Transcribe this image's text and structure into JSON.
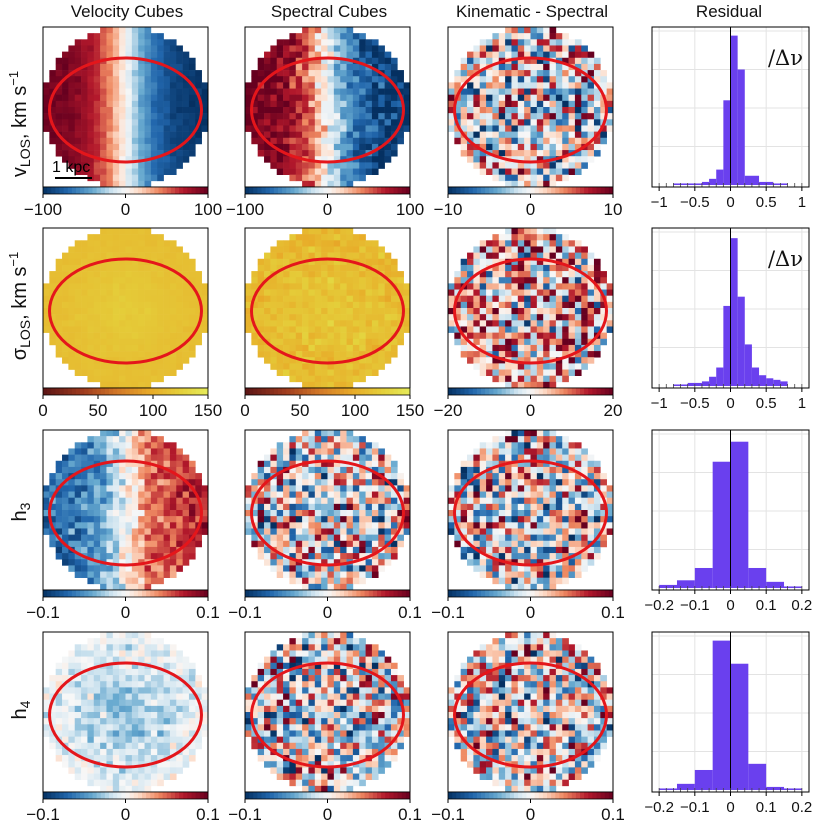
{
  "figure": {
    "column_titles": [
      "Velocity Cubes",
      "Spectral Cubes",
      "Kinematic - Spectral",
      "Residual"
    ],
    "scale_bar_label": "1 kpc",
    "hist_annotation": "/Δν"
  },
  "chart_data": [
    {
      "type": "heatmap",
      "row": 0,
      "col": 0,
      "ylabel": "v_LOS, km s^-1",
      "pattern": "rotation",
      "amplitude": 100,
      "colormap": "RdBu_r",
      "clim": [
        -100,
        100
      ],
      "colorbar_ticks": [
        "−100",
        "0",
        "100"
      ]
    },
    {
      "type": "heatmap",
      "row": 0,
      "col": 1,
      "pattern": "rotation_noisy",
      "amplitude": 100,
      "colormap": "RdBu_r",
      "clim": [
        -100,
        100
      ],
      "colorbar_ticks": [
        "−100",
        "0",
        "100"
      ]
    },
    {
      "type": "heatmap",
      "row": 0,
      "col": 2,
      "pattern": "noise",
      "amplitude": 10,
      "colormap": "RdBu_r",
      "clim": [
        -10,
        10
      ],
      "colorbar_ticks": [
        "−10",
        "0",
        "10"
      ]
    },
    {
      "type": "bar",
      "row": 0,
      "col": 3,
      "title": "Residual",
      "annotation": "/Δν",
      "xlim": [
        -1.1,
        1.1
      ],
      "ylim": [
        0,
        1
      ],
      "xticks": [
        "−1",
        "−0.5",
        "0",
        "0.5",
        "1"
      ],
      "xtick_values": [
        -1,
        -0.5,
        0,
        0.5,
        1
      ],
      "bin_edges": [
        -0.8,
        -0.6,
        -0.4,
        -0.3,
        -0.2,
        -0.1,
        0,
        0.1,
        0.2,
        0.4,
        0.6,
        0.8
      ],
      "values": [
        0.01,
        0.01,
        0.02,
        0.04,
        0.1,
        0.55,
        0.97,
        0.75,
        0.06,
        0.02,
        0.01
      ],
      "bar_color": "#6a40ee"
    },
    {
      "type": "heatmap",
      "row": 1,
      "col": 0,
      "ylabel": "σ_LOS, km s^-1",
      "pattern": "dispersion_smooth",
      "colormap": "sunset",
      "clim": [
        0,
        150
      ],
      "colorbar_ticks": [
        "0",
        "50",
        "100",
        "150"
      ]
    },
    {
      "type": "heatmap",
      "row": 1,
      "col": 1,
      "pattern": "dispersion_noisy",
      "colormap": "sunset",
      "clim": [
        0,
        150
      ],
      "colorbar_ticks": [
        "0",
        "50",
        "100",
        "150"
      ]
    },
    {
      "type": "heatmap",
      "row": 1,
      "col": 2,
      "pattern": "noise_positive",
      "amplitude": 20,
      "colormap": "RdBu_r",
      "clim": [
        -20,
        20
      ],
      "colorbar_ticks": [
        "−20",
        "0",
        "20"
      ]
    },
    {
      "type": "bar",
      "row": 1,
      "col": 3,
      "annotation": "/Δν",
      "xlim": [
        -1.1,
        1.1
      ],
      "ylim": [
        0,
        1
      ],
      "xticks": [
        "−1",
        "−0.5",
        "0",
        "0.5",
        "1"
      ],
      "xtick_values": [
        -1,
        -0.5,
        0,
        0.5,
        1
      ],
      "bin_edges": [
        -0.8,
        -0.6,
        -0.4,
        -0.3,
        -0.2,
        -0.1,
        0,
        0.1,
        0.2,
        0.3,
        0.4,
        0.5,
        0.6,
        0.7,
        0.8
      ],
      "values": [
        0.01,
        0.02,
        0.03,
        0.06,
        0.12,
        0.52,
        0.96,
        0.58,
        0.27,
        0.12,
        0.07,
        0.05,
        0.04,
        0.03
      ],
      "bar_color": "#6a40ee"
    },
    {
      "type": "heatmap",
      "row": 2,
      "col": 0,
      "ylabel": "h_3",
      "pattern": "h3_antisym",
      "amplitude": 0.07,
      "colormap": "RdBu_r",
      "clim": [
        -0.1,
        0.1
      ],
      "colorbar_ticks": [
        "−0.1",
        "0",
        "0.1"
      ]
    },
    {
      "type": "heatmap",
      "row": 2,
      "col": 1,
      "pattern": "noise",
      "amplitude": 0.1,
      "colormap": "RdBu_r",
      "clim": [
        -0.1,
        0.1
      ],
      "colorbar_ticks": [
        "−0.1",
        "0",
        "0.1"
      ]
    },
    {
      "type": "heatmap",
      "row": 2,
      "col": 2,
      "pattern": "noise",
      "amplitude": 0.1,
      "colormap": "RdBu_r",
      "clim": [
        -0.1,
        0.1
      ],
      "colorbar_ticks": [
        "−0.1",
        "0",
        "0.1"
      ]
    },
    {
      "type": "bar",
      "row": 2,
      "col": 3,
      "xlim": [
        -0.22,
        0.22
      ],
      "ylim": [
        0,
        1
      ],
      "xticks": [
        "−0.2",
        "−0.1",
        "0",
        "0.1",
        "0.2"
      ],
      "xtick_values": [
        -0.2,
        -0.1,
        0,
        0.1,
        0.2
      ],
      "bin_edges": [
        -0.2,
        -0.15,
        -0.1,
        -0.05,
        0,
        0.05,
        0.1,
        0.15,
        0.2
      ],
      "values": [
        0.02,
        0.05,
        0.13,
        0.82,
        0.95,
        0.13,
        0.04,
        0.01
      ],
      "bar_color": "#6a40ee"
    },
    {
      "type": "heatmap",
      "row": 3,
      "col": 0,
      "ylabel": "h_4",
      "pattern": "h4_smooth",
      "amplitude": 0.03,
      "colormap": "RdBu_r",
      "clim": [
        -0.1,
        0.1
      ],
      "colorbar_ticks": [
        "−0.1",
        "0",
        "0.1"
      ]
    },
    {
      "type": "heatmap",
      "row": 3,
      "col": 1,
      "pattern": "noise",
      "amplitude": 0.1,
      "colormap": "RdBu_r",
      "clim": [
        -0.1,
        0.1
      ],
      "colorbar_ticks": [
        "−0.1",
        "0",
        "0.1"
      ]
    },
    {
      "type": "heatmap",
      "row": 3,
      "col": 2,
      "pattern": "noise",
      "amplitude": 0.1,
      "colormap": "RdBu_r",
      "clim": [
        -0.1,
        0.1
      ],
      "colorbar_ticks": [
        "−0.1",
        "0",
        "0.1"
      ]
    },
    {
      "type": "bar",
      "row": 3,
      "col": 3,
      "xlim": [
        -0.22,
        0.22
      ],
      "ylim": [
        0,
        1
      ],
      "xticks": [
        "−0.2",
        "−0.1",
        "0",
        "0.1",
        "0.2"
      ],
      "xtick_values": [
        -0.2,
        -0.1,
        0,
        0.1,
        0.2
      ],
      "bin_edges": [
        -0.2,
        -0.15,
        -0.1,
        -0.05,
        0,
        0.05,
        0.1,
        0.15,
        0.2
      ],
      "values": [
        0.01,
        0.04,
        0.13,
        0.97,
        0.82,
        0.17,
        0.02,
        0.01
      ],
      "bar_color": "#6a40ee"
    }
  ]
}
